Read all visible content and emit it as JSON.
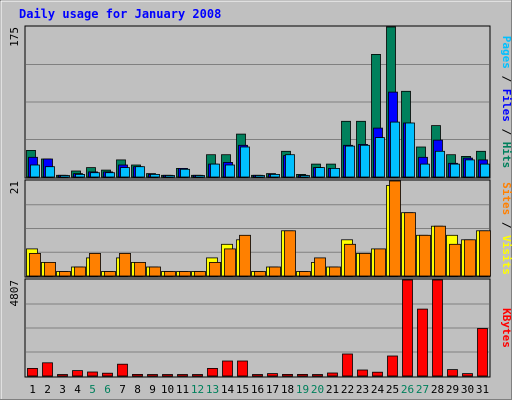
{
  "chart_data": {
    "type": "bar",
    "title": "Daily usage for January 2008",
    "categories": [
      "1",
      "2",
      "3",
      "4",
      "5",
      "6",
      "7",
      "8",
      "9",
      "10",
      "11",
      "12",
      "13",
      "14",
      "15",
      "16",
      "17",
      "18",
      "19",
      "20",
      "21",
      "22",
      "23",
      "24",
      "25",
      "26",
      "27",
      "28",
      "29",
      "30",
      "31"
    ],
    "weekend_days": [
      "5",
      "6",
      "12",
      "13",
      "19",
      "20",
      "26",
      "27"
    ],
    "panels": [
      {
        "id": "pages-files-hits",
        "max_label": "175",
        "max": 175,
        "legend": [
          "Pages",
          "Files",
          "Hits"
        ],
        "legend_separator": " / ",
        "series": [
          {
            "name": "Hits",
            "color": "#00805c",
            "values": [
              31,
              21,
              2,
              7,
              11,
              8,
              20,
              14,
              4,
              2,
              10,
              2,
              26,
              26,
              50,
              2,
              4,
              30,
              3,
              15,
              15,
              65,
              65,
              143,
              175,
              100,
              35,
              60,
              26,
              24,
              30
            ]
          },
          {
            "name": "Files",
            "color": "#0000ff",
            "values": [
              23,
              21,
              2,
              4,
              6,
              6,
              14,
              12,
              3,
              2,
              10,
              2,
              15,
              17,
              37,
              2,
              3,
              25,
              2,
              11,
              10,
              37,
              38,
              57,
              99,
              63,
              23,
              43,
              16,
              22,
              20
            ]
          },
          {
            "name": "Pages",
            "color": "#00c0ff",
            "values": [
              14,
              12,
              1,
              3,
              5,
              5,
              11,
              12,
              3,
              1,
              9,
              1,
              15,
              14,
              35,
              1,
              3,
              26,
              1,
              11,
              10,
              36,
              37,
              46,
              64,
              63,
              15,
              30,
              15,
              20,
              15
            ]
          }
        ]
      },
      {
        "id": "visits-sites",
        "max_label": "21",
        "max": 21,
        "legend": [
          "Sites",
          "Visits"
        ],
        "legend_separator": " / ",
        "series": [
          {
            "name": "Visits",
            "color": "#ffff00",
            "values": [
              6,
              3,
              1,
              2,
              4,
              1,
              4,
              3,
              2,
              1,
              1,
              1,
              4,
              7,
              8,
              1,
              2,
              10,
              1,
              3,
              2,
              8,
              5,
              6,
              20,
              14,
              9,
              11,
              9,
              8,
              10
            ]
          },
          {
            "name": "Sites",
            "color": "#ff8000",
            "values": [
              5,
              3,
              1,
              2,
              5,
              1,
              5,
              3,
              2,
              1,
              1,
              1,
              3,
              6,
              9,
              1,
              2,
              10,
              1,
              4,
              2,
              7,
              5,
              6,
              21,
              14,
              9,
              11,
              7,
              8,
              10
            ]
          }
        ]
      },
      {
        "id": "kbytes",
        "max_label": "4807",
        "max": 4807,
        "legend": [
          "KBytes"
        ],
        "legend_separator": " / ",
        "series": [
          {
            "name": "KBytes",
            "color": "#ff0000",
            "values": [
              380,
              660,
              40,
              270,
              200,
              140,
              590,
              80,
              30,
              40,
              30,
              30,
              380,
              750,
              750,
              30,
              120,
              80,
              80,
              60,
              150,
              1100,
              300,
              190,
              1000,
              4807,
              3350,
              4807,
              320,
              120,
              2380
            ]
          }
        ]
      }
    ],
    "colors": {
      "background": "#c0c0c0",
      "frame_border": "#808080",
      "title": "#0000ff",
      "axis_label": "#000000",
      "weekend_label": "#00805c",
      "grid": "#808080"
    }
  }
}
